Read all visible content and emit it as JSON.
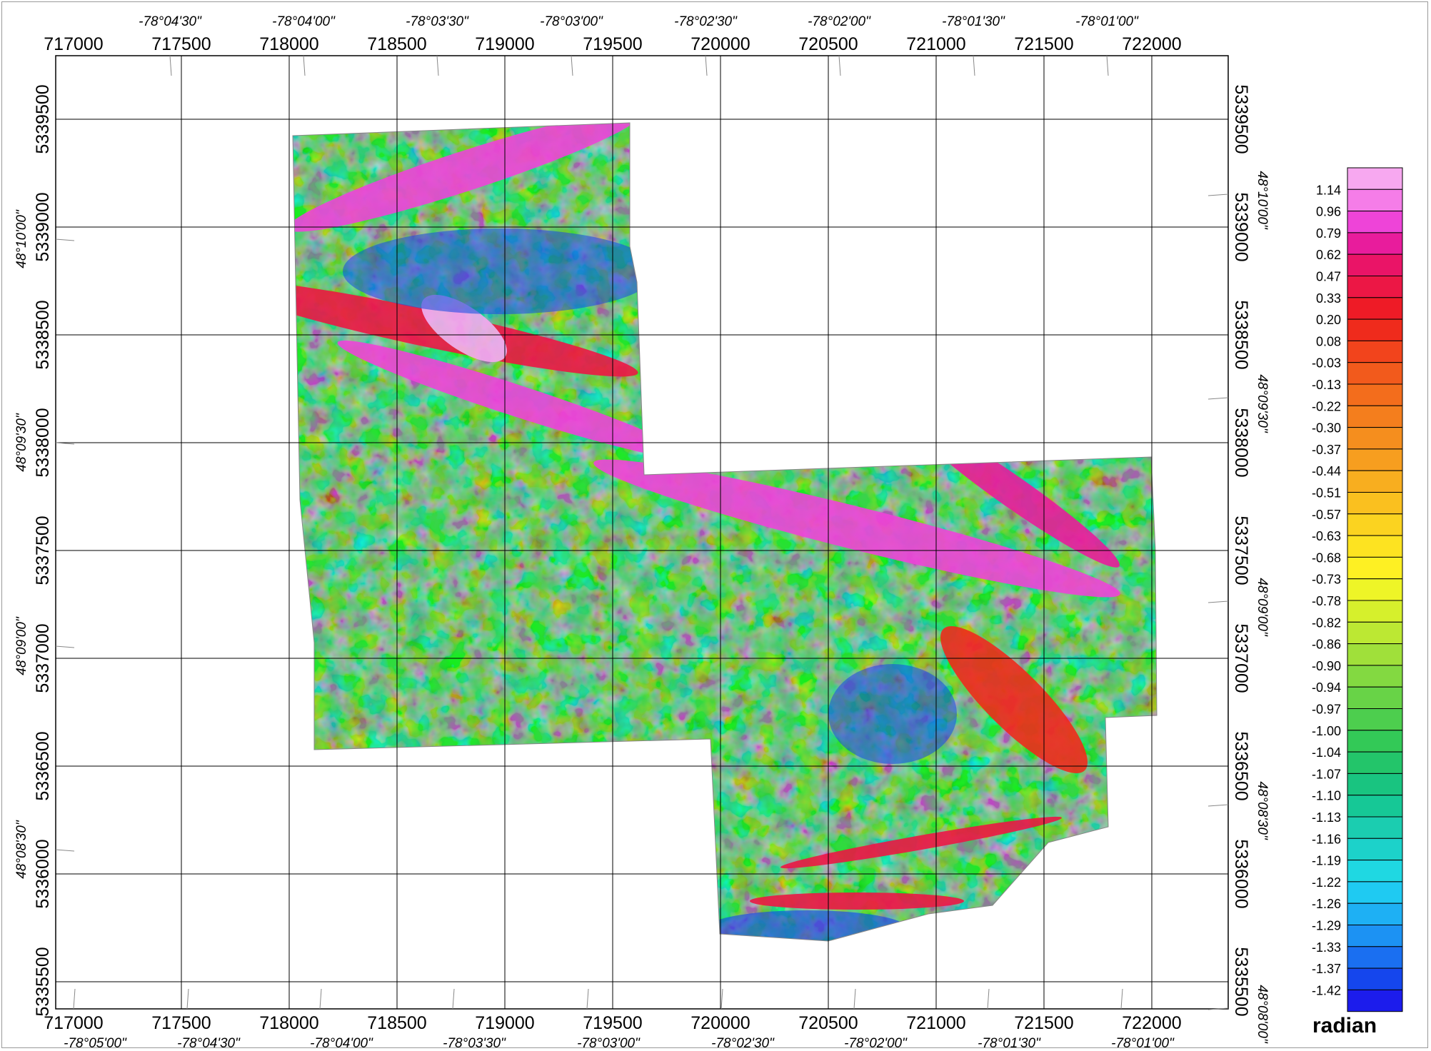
{
  "map": {
    "easting_ticks": [
      "717000",
      "717500",
      "718000",
      "718500",
      "719000",
      "719500",
      "720000",
      "720500",
      "721000",
      "721500",
      "722000"
    ],
    "northing_ticks": [
      "5339500",
      "5339000",
      "5338500",
      "5338000",
      "5337500",
      "5337000",
      "5336500",
      "5336000",
      "5335500"
    ],
    "top_longitudes": [
      "-78°04'30\"",
      "-78°04'00\"",
      "-78°03'30\"",
      "-78°03'00\"",
      "-78°02'30\"",
      "-78°02'00\"",
      "-78°01'30\"",
      "-78°01'00\""
    ],
    "bottom_longitudes": [
      "-78°05'00\"",
      "-78°04'30\"",
      "-78°04'00\"",
      "-78°03'30\"",
      "-78°03'00\"",
      "-78°02'30\"",
      "-78°02'00\"",
      "-78°01'30\"",
      "-78°01'00\""
    ],
    "left_latitudes": [
      "48°10'00\"",
      "48°09'30\"",
      "48°09'00\"",
      "48°08'30\""
    ],
    "right_latitudes": [
      "48°10'00\"",
      "48°09'30\"",
      "48°09'00\"",
      "48°08'30\"",
      "48°08'00\""
    ]
  },
  "legend": {
    "title": "radian",
    "values": [
      "1.14",
      "0.96",
      "0.79",
      "0.62",
      "0.47",
      "0.33",
      "0.20",
      "0.08",
      "-0.03",
      "-0.13",
      "-0.22",
      "-0.30",
      "-0.37",
      "-0.44",
      "-0.51",
      "-0.57",
      "-0.63",
      "-0.68",
      "-0.73",
      "-0.78",
      "-0.82",
      "-0.86",
      "-0.90",
      "-0.94",
      "-0.97",
      "-1.00",
      "-1.04",
      "-1.07",
      "-1.10",
      "-1.13",
      "-1.16",
      "-1.19",
      "-1.22",
      "-1.26",
      "-1.29",
      "-1.33",
      "-1.37",
      "-1.42"
    ],
    "colors": [
      "#f7a8f0",
      "#f57de8",
      "#ee44d8",
      "#e81c9c",
      "#ea1467",
      "#ec1745",
      "#ee1b26",
      "#ef2b1c",
      "#f2441c",
      "#f25a1c",
      "#f36d1c",
      "#f47e1d",
      "#f58e1e",
      "#f79e1f",
      "#f8ae1f",
      "#fac01f",
      "#fbd320",
      "#fde321",
      "#fef023",
      "#eef527",
      "#d6f02c",
      "#bce833",
      "#a0e03a",
      "#83d941",
      "#68d347",
      "#4dce4e",
      "#33c957",
      "#23c56a",
      "#19c480",
      "#16c896",
      "#1bcdb0",
      "#1cd2ca",
      "#1fd8e2",
      "#1fcaf2",
      "#1eb0f4",
      "#1c92f3",
      "#1a6ff1",
      "#1546ed",
      "#1c1cec"
    ]
  }
}
